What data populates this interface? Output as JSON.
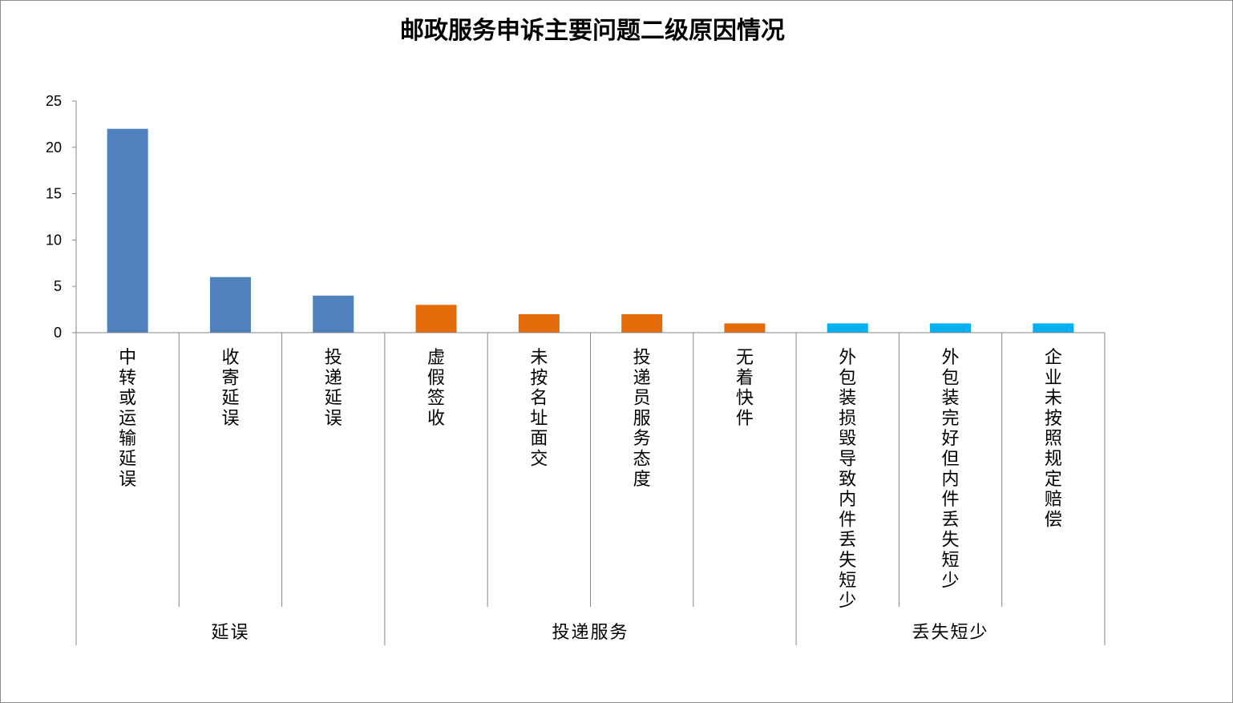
{
  "chart_data": {
    "type": "bar",
    "title": "邮政服务申诉主要问题二级原因情况",
    "xlabel": "",
    "ylabel": "",
    "ylim": [
      0,
      25
    ],
    "yticks": [
      "0",
      "5",
      "10",
      "15",
      "20",
      "25"
    ],
    "grid": false,
    "legend": "none",
    "categories": [
      "中转或运输延误",
      "收寄延误",
      "投递延误",
      "虚假签收",
      "未按名址面交",
      "投递员服务态度",
      "无着快件",
      "外包装损毁导致内件丢失短少",
      "外包装完好但内件丢失短少",
      "企业未按照规定赔偿"
    ],
    "values": [
      22,
      6,
      4,
      3,
      2,
      2,
      1,
      1,
      1,
      1
    ],
    "groups": [
      {
        "label": "延误",
        "start": 0,
        "end": 2,
        "color": "#4f81bd"
      },
      {
        "label": "投递服务",
        "start": 3,
        "end": 6,
        "color": "#e36c09"
      },
      {
        "label": "丢失短少",
        "start": 7,
        "end": 9,
        "color": "#00b0f0"
      }
    ]
  }
}
